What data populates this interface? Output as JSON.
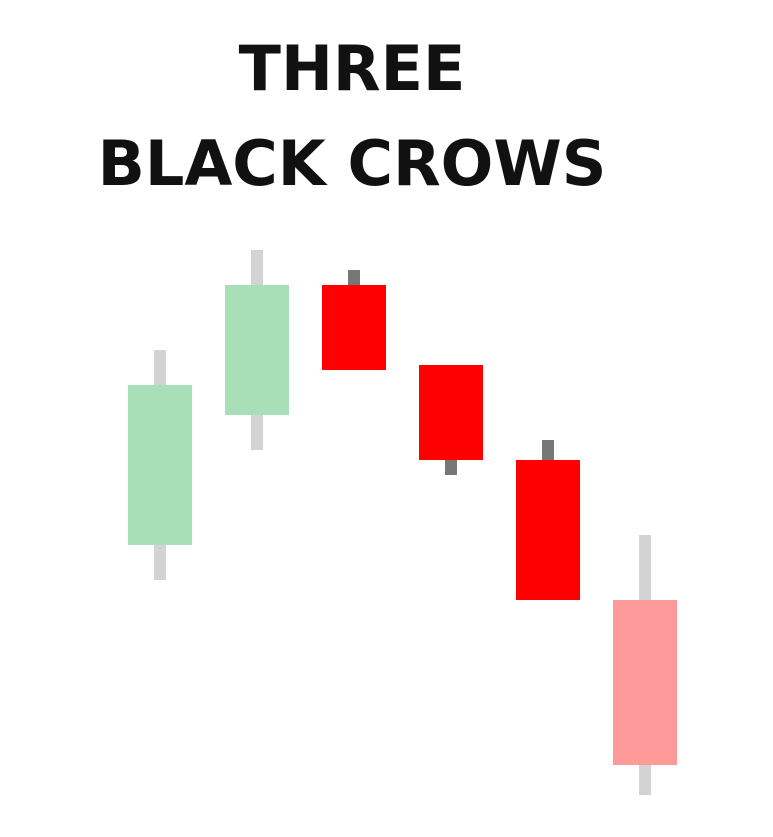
{
  "chart_data": {
    "type": "candlestick",
    "title": [
      "THREE",
      "BLACK CROWS"
    ],
    "categories": [
      null,
      null,
      null,
      null,
      null,
      null
    ],
    "open": [
      51,
      77,
      103,
      87,
      68,
      40
    ],
    "high": [
      90,
      110,
      106,
      87,
      72,
      53
    ],
    "low": [
      44,
      70,
      86,
      65,
      40,
      1
    ],
    "close": [
      83,
      103,
      86,
      68,
      40,
      7
    ],
    "colors": [
      "#a8dfb7",
      "#a8dfb7",
      "#ff0000",
      "#ff0000",
      "#ff0000",
      "#ff9a9a"
    ],
    "wick_colors": [
      "#d3d3d3",
      "#d3d3d3",
      "#777777",
      "#777777",
      "#777777",
      "#d3d3d3"
    ],
    "ylim": [
      0,
      120
    ]
  }
}
